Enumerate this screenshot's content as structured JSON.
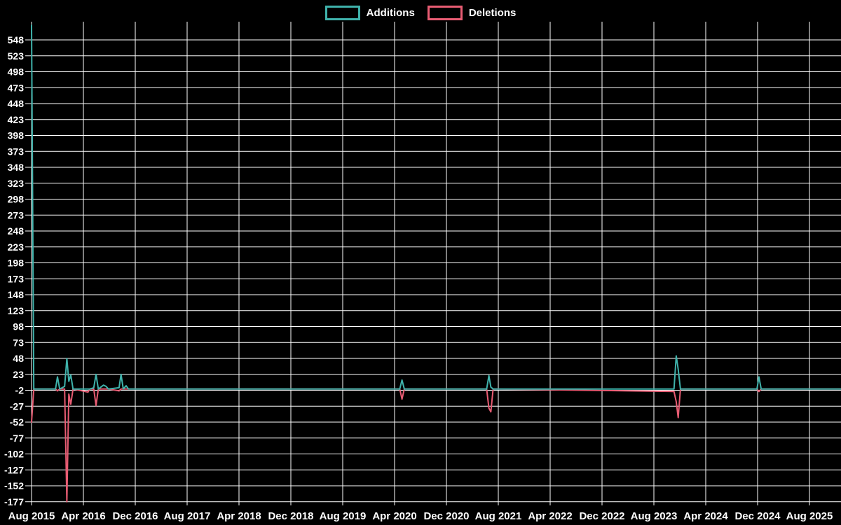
{
  "colors": {
    "background": "#000000",
    "grid": "#ffffff",
    "text": "#ffffff",
    "additions": "#3fb2ab",
    "deletions": "#e85c73"
  },
  "legend": {
    "items": [
      {
        "label": "Additions",
        "color_key": "additions"
      },
      {
        "label": "Deletions",
        "color_key": "deletions"
      }
    ]
  },
  "chart_data": {
    "type": "line",
    "title": "",
    "xlabel": "",
    "ylabel": "",
    "grid": true,
    "legend_position": "top-center",
    "x_axis": {
      "tick_labels": [
        "Aug 2015",
        "Apr 2016",
        "Dec 2016",
        "Aug 2017",
        "Apr 2018",
        "Dec 2018",
        "Aug 2019",
        "Apr 2020",
        "Dec 2020",
        "Aug 2021",
        "Apr 2022",
        "Dec 2022",
        "Aug 2023",
        "Apr 2024",
        "Dec 2024",
        "Aug 2025"
      ],
      "tick_interval_months": 8,
      "range_months": [
        0,
        124.9
      ]
    },
    "y_axis": {
      "tick_labels": [
        548,
        523,
        498,
        473,
        448,
        423,
        398,
        373,
        348,
        323,
        298,
        273,
        248,
        223,
        198,
        173,
        148,
        123,
        98,
        73,
        48,
        23,
        -2,
        -27,
        -52,
        -77,
        -102,
        -127,
        -152,
        -177
      ],
      "tick_step": 25,
      "ylim": [
        -190,
        575
      ]
    },
    "series": [
      {
        "name": "Additions",
        "color_key": "additions"
      },
      {
        "name": "Deletions",
        "color_key": "deletions"
      }
    ],
    "points_note": "m = months after Aug 2015; additions clipped at plot top (~571) on first point; flat 0 between listed anchors",
    "points": [
      {
        "m": 0,
        "additions": 571,
        "deletions": -52
      },
      {
        "m": 0.35,
        "additions": 0,
        "deletions": 0
      },
      {
        "m": 3.7,
        "additions": 0,
        "deletions": 0
      },
      {
        "m": 4.0,
        "additions": 19,
        "deletions": -3
      },
      {
        "m": 4.35,
        "additions": 0,
        "deletions": 0
      },
      {
        "m": 5.1,
        "additions": 4,
        "deletions": 0
      },
      {
        "m": 5.45,
        "additions": 48,
        "deletions": -177
      },
      {
        "m": 5.75,
        "additions": 12,
        "deletions": -8
      },
      {
        "m": 6.05,
        "additions": 22,
        "deletions": -24
      },
      {
        "m": 6.4,
        "additions": 0,
        "deletions": 0
      },
      {
        "m": 8.7,
        "additions": 0,
        "deletions": -5
      },
      {
        "m": 9.0,
        "additions": 0,
        "deletions": 0
      },
      {
        "m": 9.6,
        "additions": 2,
        "deletions": 0
      },
      {
        "m": 9.95,
        "additions": 23,
        "deletions": -26
      },
      {
        "m": 10.3,
        "additions": 0,
        "deletions": 0
      },
      {
        "m": 11.1,
        "additions": 6,
        "deletions": 0
      },
      {
        "m": 11.5,
        "additions": 4,
        "deletions": 0
      },
      {
        "m": 11.85,
        "additions": 0,
        "deletions": 0
      },
      {
        "m": 13.5,
        "additions": 2,
        "deletions": -3
      },
      {
        "m": 13.8,
        "additions": 23,
        "deletions": 0
      },
      {
        "m": 14.15,
        "additions": 0,
        "deletions": 0
      },
      {
        "m": 14.6,
        "additions": 5,
        "deletions": 0
      },
      {
        "m": 14.95,
        "additions": 0,
        "deletions": 0
      },
      {
        "m": 56.8,
        "additions": 0,
        "deletions": 0
      },
      {
        "m": 57.15,
        "additions": 14,
        "deletions": -16
      },
      {
        "m": 57.5,
        "additions": 0,
        "deletions": 0
      },
      {
        "m": 70.2,
        "additions": 0,
        "deletions": 0
      },
      {
        "m": 70.55,
        "additions": 21,
        "deletions": -30
      },
      {
        "m": 70.85,
        "additions": 3,
        "deletions": -36
      },
      {
        "m": 71.2,
        "additions": 0,
        "deletions": 0
      },
      {
        "m": 99.1,
        "additions": 0,
        "deletions": -4
      },
      {
        "m": 99.45,
        "additions": 52,
        "deletions": -20
      },
      {
        "m": 99.75,
        "additions": 31,
        "deletions": -45
      },
      {
        "m": 100.1,
        "additions": 0,
        "deletions": 0
      },
      {
        "m": 111.9,
        "additions": 0,
        "deletions": 0
      },
      {
        "m": 112.2,
        "additions": 19,
        "deletions": -4
      },
      {
        "m": 112.55,
        "additions": 0,
        "deletions": 0
      },
      {
        "m": 124.9,
        "additions": 0,
        "deletions": 0
      }
    ]
  }
}
